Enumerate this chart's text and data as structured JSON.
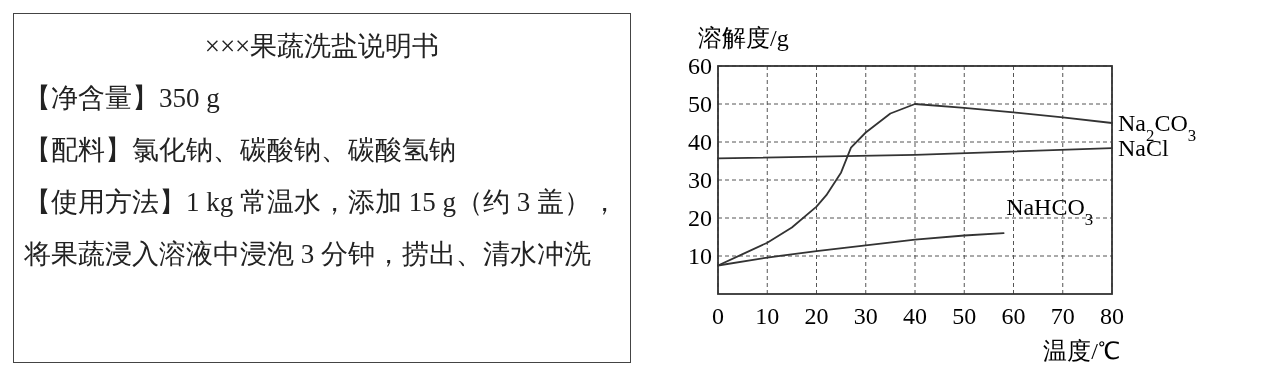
{
  "chart_data": [
    {
      "type": "other",
      "title": "×××果蔬洗盐说明书",
      "annotations": [
        "【净含量】350 g",
        "【配料】氯化钠、碳酸钠、碳酸氢钠",
        "【使用方法】1 kg 常温水，添加 15 g（约 3 盖），将果蔬浸入溶液中浸泡 3 分钟，捞出、清水冲洗"
      ]
    },
    {
      "type": "line",
      "xlabel": "温度/℃",
      "ylabel": "溶解度/g",
      "grid": true,
      "xlim": [
        0,
        80
      ],
      "ylim": [
        0,
        60
      ],
      "xticks": [
        0,
        10,
        20,
        30,
        40,
        50,
        60,
        70,
        80
      ],
      "yticks": [
        10,
        20,
        30,
        40,
        50,
        60
      ],
      "series": [
        {
          "name": "Na$_{2}$CO$_{3}$",
          "color": "#333333",
          "x": [
            0,
            5,
            10,
            15,
            20,
            22,
            25,
            27,
            30,
            35,
            40,
            50,
            60,
            70,
            80
          ],
          "values": [
            7.5,
            10.5,
            13.5,
            17.5,
            23,
            26,
            32,
            38.5,
            42.5,
            47.5,
            50,
            49,
            47.8,
            46.5,
            45
          ]
        },
        {
          "name": "NaCl",
          "color": "#333333",
          "x": [
            0,
            40,
            80
          ],
          "values": [
            35.7,
            36.6,
            38.4
          ]
        },
        {
          "name": "NaHCO$_{3}$",
          "color": "#333333",
          "x": [
            0,
            10,
            20,
            30,
            40,
            50,
            58
          ],
          "values": [
            7.5,
            9.6,
            11.3,
            12.8,
            14.3,
            15.4,
            16
          ]
        }
      ]
    }
  ]
}
